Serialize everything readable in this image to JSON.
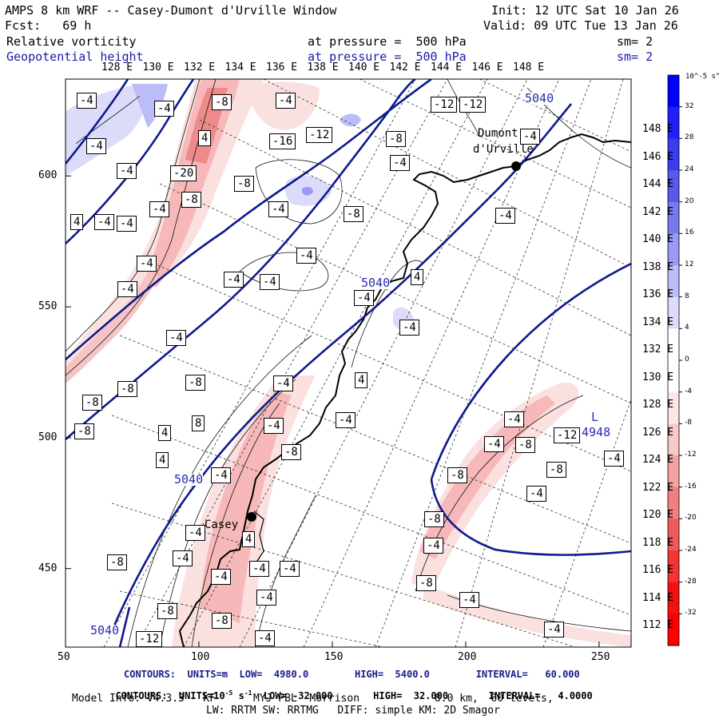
{
  "header": {
    "title": "AMPS 8 km WRF -- Casey-Dumont d'Urville Window",
    "init": "Init: 12 UTC Sat 10 Jan 26",
    "fcst": "Fcst:   69 h",
    "valid": "Valid: 09 UTC Tue 13 Jan 26",
    "field1": "Relative vorticity",
    "field1_level": "at pressure =  500 hPa",
    "field1_sm": "sm= 2",
    "field2": "Geopotential height",
    "field2_level": "at pressure =  500 hPa",
    "field2_sm": "sm= 2"
  },
  "chart_data": {
    "type": "map",
    "top_lon_labels": [
      "128 E",
      "130 E",
      "132 E",
      "134 E",
      "136 E",
      "138 E",
      "140 E",
      "142 E",
      "144 E",
      "146 E",
      "148 E"
    ],
    "right_lon_labels": [
      "148 E",
      "146 E",
      "144 E",
      "142 E",
      "140 E",
      "138 E",
      "136 E",
      "134 E",
      "132 E",
      "130 E",
      "128 E",
      "126 E",
      "124 E",
      "122 E",
      "120 E",
      "118 E",
      "116 E",
      "114 E",
      "112 E"
    ],
    "x_ticks": [
      50,
      100,
      150,
      200,
      250
    ],
    "y_ticks": [
      450,
      500,
      550,
      600
    ],
    "xlim": [
      50,
      262
    ],
    "ylim": [
      420,
      637
    ],
    "places": [
      {
        "name": "Dumont d'Urville",
        "label1": "Dumont",
        "label2": "d'Urville",
        "x": 218,
        "y": 608
      },
      {
        "name": "Casey",
        "label1": "Casey",
        "x": 120,
        "y": 473
      }
    ],
    "height_labels": [
      "5040",
      "5040",
      "5040",
      "5040"
    ],
    "low_center": {
      "symbol": "L",
      "value": "4948"
    },
    "contour_labels": [
      "8",
      "8",
      "8",
      "8",
      "4",
      "4",
      "4",
      "-16",
      "-12",
      "-20",
      "-8",
      "-8",
      "-12",
      "-12",
      "-4",
      "-8",
      "-4",
      "-8",
      "-4",
      "4",
      "-4",
      "-4",
      "-4",
      "-4",
      "4",
      "-4",
      "-4",
      "-4",
      "-4",
      "-4",
      "-4",
      "-8",
      "-8",
      "-4",
      "-4",
      "-8",
      "-8",
      "-4",
      "4",
      "8",
      "-4",
      "4",
      "4",
      "-8",
      "-4",
      "-4",
      "-8",
      "-4",
      "4",
      "-4",
      "-8",
      "-4",
      "-4",
      "-4",
      "-8",
      "-4",
      "-8",
      "-4",
      "-4",
      "-8",
      "-8",
      "-12",
      "-4",
      "-4",
      "-4",
      "-8",
      "-12",
      "-8",
      "-4",
      "-4",
      "-4",
      "-4",
      "-4",
      "-4",
      "-4",
      "-8",
      "-4"
    ],
    "colorbar": {
      "unit_label": "10^-5 s^-1",
      "levels": [
        "32",
        "28",
        "24",
        "20",
        "16",
        "12",
        "8",
        "4",
        "0",
        "-4",
        "-8",
        "-12",
        "-16",
        "-20",
        "-24",
        "-28",
        "-32"
      ],
      "colors": [
        "#0000ff",
        "#1f1fff",
        "#3b3bf0",
        "#5858ec",
        "#7878f0",
        "#9a9af4",
        "#bcbcf8",
        "#dcdcfa",
        "#ffffff",
        "#ffffff",
        "#fde6e6",
        "#f9c8c8",
        "#f4a2a2",
        "#ef8080",
        "#ef5a5a",
        "#f23434",
        "#f51010",
        "#ff0000"
      ]
    }
  },
  "footer": {
    "line1_label": "CONTOURS:  UNITS=m  LOW=  4980.0        HIGH=  5400.0        INTERVAL=   60.000",
    "line2_label": "CONTOURS:  UNITS=10",
    "line2_exp": "-5",
    "line2_rest": " s",
    "line2_exp2": "-1",
    "line2_values": "  LOW= -32.000       HIGH=  32.000       INTERVAL=   4.0000",
    "line3": "Model Info: V4.3.3   KF      MYJ PBL  Morrison            8.0 km,  60 levels,",
    "line4": "LW: RRTM SW: RRTMG   DIFF: simple KM: 2D Smagor"
  }
}
